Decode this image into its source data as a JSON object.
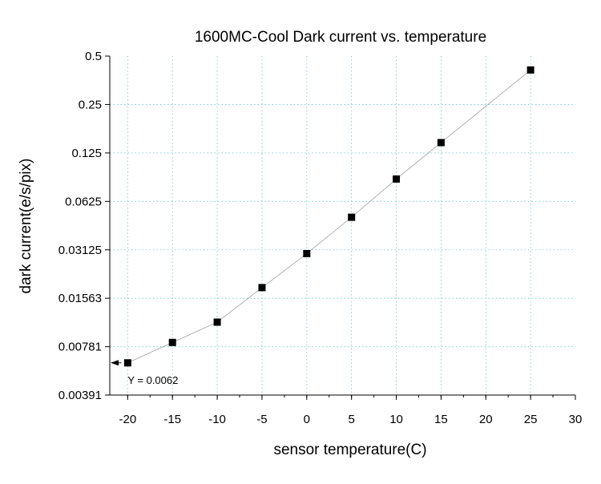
{
  "chart_data": {
    "type": "scatter",
    "title": "1600MC-Cool Dark current vs. temperature",
    "xlabel": "sensor temperature(C)",
    "ylabel": "dark current(e/s/pix)",
    "xlim": [
      -22,
      30
    ],
    "ylim": [
      0.00391,
      0.5
    ],
    "y_scale": "log2",
    "grid": true,
    "x_ticks": [
      -20,
      -15,
      -10,
      -5,
      0,
      5,
      10,
      15,
      20,
      25,
      30
    ],
    "x_tick_labels": [
      "-20",
      "-15",
      "-10",
      "-5",
      "0",
      "5",
      "10",
      "15",
      "20",
      "25",
      "30"
    ],
    "y_ticks": [
      0.00391,
      0.00781,
      0.01563,
      0.03125,
      0.0625,
      0.125,
      0.25,
      0.5
    ],
    "y_tick_labels": [
      "0.00391",
      "0.00781",
      "0.01563",
      "0.03125",
      "0.0625",
      "0.125",
      "0.25",
      "0.5"
    ],
    "series": [
      {
        "x": [
          -20,
          -15,
          -10,
          -5,
          0,
          5,
          10,
          15,
          25
        ],
        "y": [
          0.0062,
          0.0083,
          0.0111,
          0.0182,
          0.0296,
          0.0498,
          0.0861,
          0.145,
          0.41
        ],
        "marker": "square",
        "marker_color": "#000000",
        "line_color": "#a0a0a0"
      }
    ],
    "annotations": [
      {
        "text": "Y = 0.0062",
        "x": -20,
        "y": 0.0062
      }
    ]
  }
}
